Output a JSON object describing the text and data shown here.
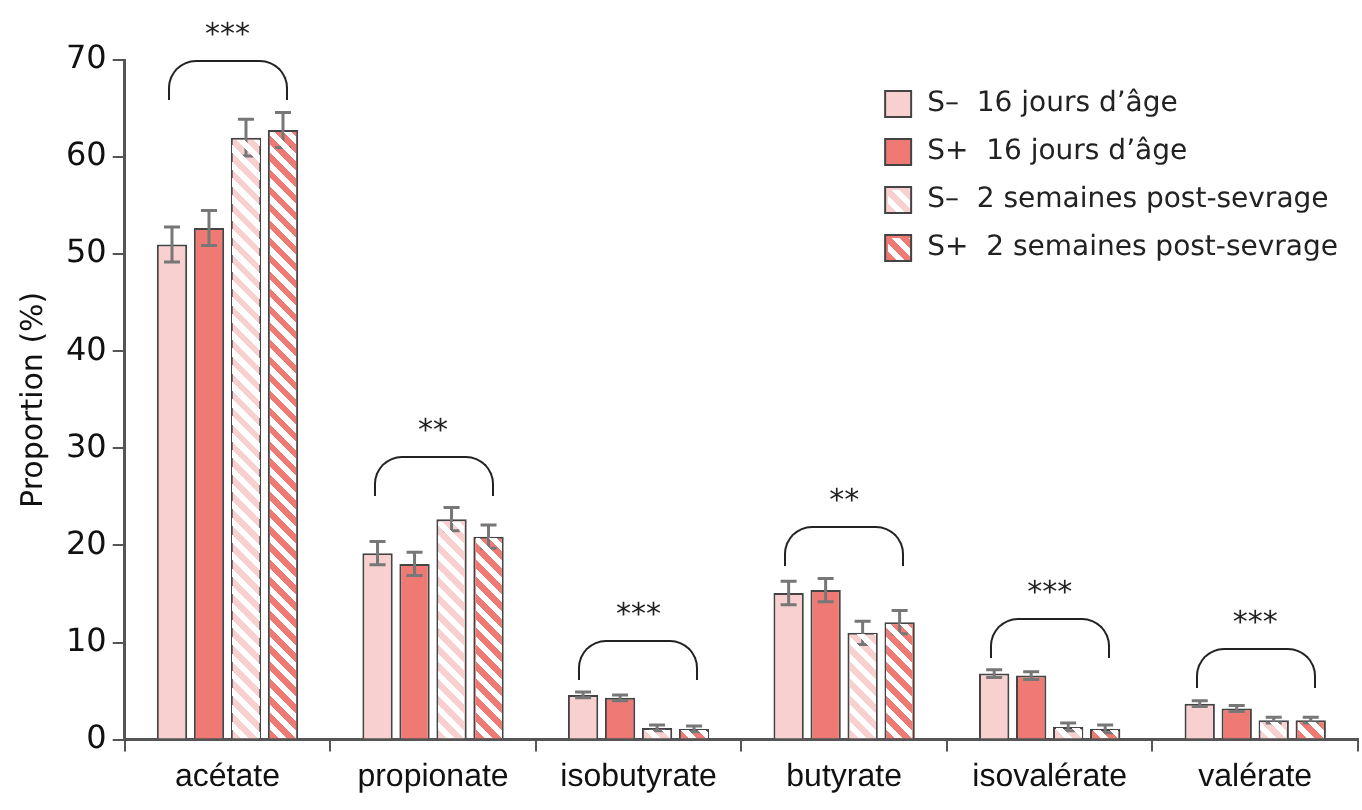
{
  "chart_data": {
    "type": "bar",
    "ylabel": "Proportion (%)",
    "categories": [
      "acétate",
      "propionate",
      "isobutyrate",
      "butyrate",
      "isovalérate",
      "valérate"
    ],
    "series": [
      {
        "name": "S–  16 jours d’âge",
        "color": "#f9d0d0",
        "values": [
          51,
          19.2,
          4.6,
          15.1,
          6.8,
          3.7
        ],
        "errors": [
          1.8,
          1.2,
          0.3,
          1.2,
          0.4,
          0.3
        ]
      },
      {
        "name": "S+  16 jours d’âge",
        "color": "#ef7a74",
        "values": [
          52.7,
          18.1,
          4.3,
          15.4,
          6.6,
          3.2
        ],
        "errors": [
          1.8,
          1.2,
          0.3,
          1.2,
          0.4,
          0.3
        ]
      },
      {
        "name": "S–  2 semaines post-sevrage",
        "color": "#f9d0d0",
        "values": [
          62,
          22.7,
          1.2,
          11,
          1.3,
          2
        ],
        "errors": [
          1.9,
          1.2,
          0.3,
          1.2,
          0.4,
          0.3
        ]
      },
      {
        "name": "S+  2 semaines post-sevrage",
        "color": "#ef7a74",
        "values": [
          62.8,
          20.9,
          1.1,
          12.1,
          1.1,
          2
        ],
        "errors": [
          1.8,
          1.2,
          0.3,
          1.2,
          0.4,
          0.3
        ]
      }
    ],
    "ylim": [
      0,
      70
    ],
    "yticks": [
      0,
      10,
      20,
      30,
      40,
      50,
      60,
      70
    ],
    "grid": false,
    "legend": "top right",
    "annotations": [
      "***",
      "**",
      "***",
      "**",
      "***",
      "***"
    ]
  }
}
